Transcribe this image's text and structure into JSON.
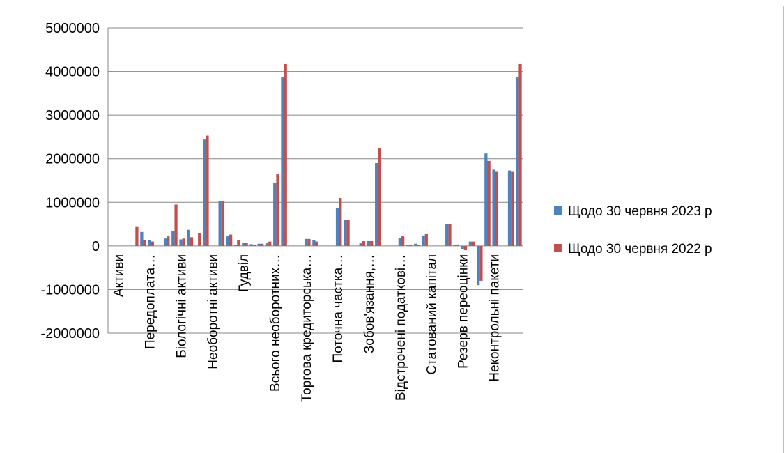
{
  "chart_data": {
    "type": "bar",
    "categories": [
      "Активи",
      null,
      null,
      null,
      "Передоплата…",
      null,
      null,
      null,
      "Біологічні активи",
      null,
      null,
      null,
      "Необоротні активи",
      null,
      null,
      null,
      "Гудвіл",
      null,
      null,
      null,
      "Всього необоротних…",
      null,
      null,
      null,
      "Торгова кредиторська…",
      null,
      null,
      null,
      "Поточна частка…",
      null,
      null,
      null,
      "Зобов'язання,…",
      null,
      null,
      null,
      "Відстрочені податкові…",
      null,
      null,
      null,
      "Статований капітал",
      null,
      null,
      null,
      "Резерв переоцінки",
      null,
      null,
      null,
      "Неконтрольні пакети",
      null,
      null,
      null,
      null
    ],
    "series": [
      {
        "name": "Щодо 30 червня 2023 р",
        "color": "#4f81bd",
        "values": [
          null,
          0,
          0,
          0,
          320000,
          130000,
          0,
          170000,
          350000,
          150000,
          370000,
          0,
          2440000,
          0,
          1020000,
          220000,
          30000,
          70000,
          40000,
          50000,
          60000,
          1450000,
          3880000,
          0,
          0,
          160000,
          140000,
          0,
          0,
          870000,
          600000,
          0,
          60000,
          110000,
          1900000,
          0,
          0,
          180000,
          20000,
          50000,
          240000,
          0,
          0,
          500000,
          30000,
          -80000,
          100000,
          -900000,
          2120000,
          1750000,
          0,
          1730000,
          3880000
        ]
      },
      {
        "name": "Щодо 30 червня 2022 р",
        "color": "#c0504d",
        "values": [
          null,
          0,
          0,
          450000,
          130000,
          100000,
          0,
          220000,
          950000,
          170000,
          200000,
          290000,
          2530000,
          0,
          1020000,
          260000,
          130000,
          70000,
          30000,
          50000,
          100000,
          1660000,
          4170000,
          0,
          0,
          160000,
          100000,
          0,
          0,
          1100000,
          590000,
          0,
          110000,
          110000,
          2250000,
          0,
          0,
          220000,
          20000,
          30000,
          270000,
          0,
          0,
          500000,
          30000,
          -100000,
          100000,
          -800000,
          1950000,
          1700000,
          0,
          1700000,
          4170000
        ]
      }
    ],
    "ylim": [
      -2000000,
      5000000
    ],
    "yticks": [
      -2000000,
      -1000000,
      0,
      1000000,
      2000000,
      3000000,
      4000000,
      5000000
    ],
    "grid": true,
    "legend": "right"
  }
}
